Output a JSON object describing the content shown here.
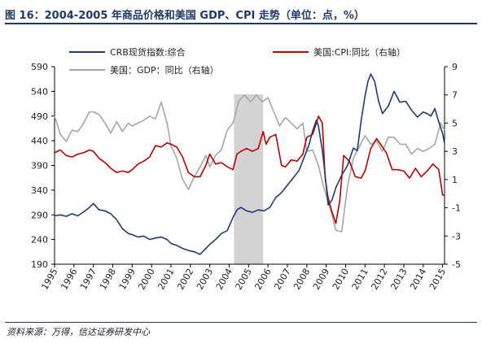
{
  "header": {
    "title": "图 16：2004-2005 年商品价格和美国 GDP、CPI 走势（单位：点，%）"
  },
  "footer": {
    "source": "资料来源：万得，信达证券研发中心"
  },
  "chart_data": {
    "type": "line",
    "x_ticks": [
      "1995",
      "1996",
      "1997",
      "1998",
      "1999",
      "2000",
      "2001",
      "2002",
      "2003",
      "2004",
      "2005",
      "2006",
      "2007",
      "2008",
      "2009",
      "2010",
      "2011",
      "2012",
      "2013",
      "2014",
      "2015"
    ],
    "y_left": {
      "min": 190,
      "max": 590,
      "ticks": [
        190,
        240,
        290,
        340,
        390,
        440,
        490,
        540,
        590
      ]
    },
    "y_right": {
      "min": -5,
      "max": 9,
      "ticks": [
        -5,
        -3,
        -1,
        1,
        3,
        5,
        7,
        9
      ]
    },
    "shaded_region": [
      2004.25,
      2005.75
    ],
    "colors": {
      "crb": "#1f3a78",
      "cpi": "#c00000",
      "gdp": "#a6a6a6",
      "shade": "#d3d3d3",
      "accent": "#1f3a68"
    },
    "series": [
      {
        "name": "CRB现货指数:综合",
        "axis": "left",
        "x": [
          1995.0,
          1995.3,
          1995.6,
          1995.9,
          1996.2,
          1996.5,
          1996.8,
          1997.0,
          1997.3,
          1997.6,
          1997.9,
          1998.2,
          1998.5,
          1998.8,
          1999.0,
          1999.3,
          1999.6,
          1999.9,
          2000.2,
          2000.5,
          2000.8,
          2001.0,
          2001.3,
          2001.6,
          2001.9,
          2002.2,
          2002.5,
          2002.8,
          2003.0,
          2003.3,
          2003.6,
          2003.9,
          2004.2,
          2004.4,
          2004.6,
          2004.9,
          2005.2,
          2005.5,
          2005.8,
          2006.1,
          2006.4,
          2006.7,
          2007.0,
          2007.3,
          2007.6,
          2007.9,
          2008.1,
          2008.3,
          2008.5,
          2008.6,
          2008.8,
          2008.95,
          2009.1,
          2009.3,
          2009.5,
          2009.8,
          2010.1,
          2010.4,
          2010.6,
          2010.8,
          2011.0,
          2011.15,
          2011.3,
          2011.5,
          2011.7,
          2011.9,
          2012.2,
          2012.5,
          2012.8,
          2013.1,
          2013.4,
          2013.7,
          2014.0,
          2014.2,
          2014.4,
          2014.6,
          2014.8,
          2015.0,
          2015.1
        ],
        "y": [
          288,
          290,
          287,
          292,
          288,
          296,
          305,
          313,
          300,
          298,
          292,
          280,
          262,
          252,
          250,
          245,
          247,
          240,
          243,
          245,
          240,
          232,
          228,
          222,
          218,
          215,
          210,
          222,
          230,
          240,
          252,
          258,
          285,
          300,
          305,
          298,
          295,
          300,
          298,
          305,
          325,
          335,
          350,
          365,
          380,
          410,
          430,
          460,
          482,
          470,
          420,
          370,
          310,
          320,
          345,
          370,
          390,
          425,
          420,
          480,
          530,
          560,
          575,
          560,
          520,
          495,
          510,
          540,
          518,
          520,
          502,
          488,
          498,
          495,
          490,
          505,
          478,
          455,
          435
        ]
      },
      {
        "name": "美国:CPI:同比（右轴）",
        "axis": "right",
        "x": [
          1995.0,
          1995.3,
          1995.6,
          1995.9,
          1996.2,
          1996.5,
          1996.8,
          1997.0,
          1997.3,
          1997.6,
          1997.9,
          1998.2,
          1998.5,
          1998.8,
          1999.0,
          1999.3,
          1999.6,
          1999.9,
          2000.2,
          2000.5,
          2000.8,
          2001.0,
          2001.3,
          2001.6,
          2001.9,
          2002.2,
          2002.5,
          2002.8,
          2003.0,
          2003.3,
          2003.6,
          2003.9,
          2004.2,
          2004.4,
          2004.6,
          2004.9,
          2005.2,
          2005.5,
          2005.75,
          2005.9,
          2006.1,
          2006.4,
          2006.7,
          2006.9,
          2007.2,
          2007.5,
          2007.8,
          2008.0,
          2008.3,
          2008.5,
          2008.6,
          2008.8,
          2008.95,
          2009.1,
          2009.3,
          2009.5,
          2009.7,
          2009.9,
          2010.2,
          2010.5,
          2010.8,
          2011.0,
          2011.3,
          2011.6,
          2011.8,
          2012.1,
          2012.4,
          2012.7,
          2013.0,
          2013.3,
          2013.6,
          2013.9,
          2014.2,
          2014.5,
          2014.8,
          2015.0,
          2015.1
        ],
        "y": [
          2.9,
          3.1,
          2.7,
          2.6,
          2.8,
          2.9,
          3.1,
          3.0,
          2.5,
          2.2,
          1.8,
          1.5,
          1.6,
          1.5,
          1.7,
          2.1,
          2.3,
          2.6,
          3.4,
          3.3,
          3.6,
          3.5,
          3.3,
          2.6,
          1.5,
          1.2,
          1.2,
          2.0,
          2.8,
          2.1,
          2.2,
          1.9,
          1.7,
          2.8,
          3.0,
          3.2,
          3.0,
          3.2,
          4.4,
          3.5,
          4.0,
          4.2,
          2.0,
          1.9,
          2.4,
          2.3,
          2.8,
          4.0,
          4.2,
          5.0,
          5.5,
          5.0,
          1.1,
          -0.3,
          -1.3,
          -2.1,
          -0.5,
          2.7,
          2.3,
          1.2,
          1.1,
          1.6,
          3.2,
          3.9,
          3.5,
          2.9,
          1.7,
          1.7,
          1.6,
          1.1,
          1.8,
          1.2,
          1.6,
          2.1,
          1.7,
          -0.1,
          -0.1
        ]
      },
      {
        "name": "美国：GDP：同比（右轴）",
        "axis": "right",
        "x": [
          1995.0,
          1995.3,
          1995.6,
          1995.9,
          1996.2,
          1996.5,
          1996.8,
          1997.0,
          1997.3,
          1997.6,
          1997.9,
          1998.2,
          1998.5,
          1998.8,
          1999.0,
          1999.3,
          1999.6,
          1999.9,
          2000.2,
          2000.5,
          2000.8,
          2001.0,
          2001.3,
          2001.6,
          2001.9,
          2002.2,
          2002.5,
          2002.8,
          2003.0,
          2003.3,
          2003.6,
          2003.9,
          2004.2,
          2004.5,
          2004.8,
          2005.1,
          2005.4,
          2005.7,
          2006.0,
          2006.3,
          2006.6,
          2006.9,
          2007.2,
          2007.5,
          2007.8,
          2008.0,
          2008.3,
          2008.6,
          2008.9,
          2009.2,
          2009.5,
          2009.8,
          2010.1,
          2010.4,
          2010.7,
          2011.0,
          2011.3,
          2011.6,
          2011.9,
          2012.2,
          2012.5,
          2012.8,
          2013.1,
          2013.4,
          2013.7,
          2014.0,
          2014.3,
          2014.6,
          2014.9,
          2015.1
        ],
        "y": [
          5.5,
          4.2,
          3.7,
          4.5,
          4.4,
          5.0,
          5.8,
          5.8,
          5.6,
          5.0,
          4.3,
          5.1,
          4.4,
          5.0,
          4.8,
          5.0,
          5.2,
          5.5,
          5.3,
          6.5,
          5.0,
          3.4,
          2.5,
          1.0,
          0.3,
          1.2,
          1.9,
          2.7,
          1.9,
          2.7,
          3.1,
          4.5,
          5.0,
          6.6,
          7.0,
          6.5,
          7.0,
          6.5,
          6.8,
          5.8,
          4.8,
          5.4,
          5.0,
          4.6,
          5.0,
          3.0,
          3.1,
          2.0,
          0.3,
          -1.0,
          -2.6,
          -2.7,
          0.5,
          2.5,
          3.3,
          4.1,
          3.5,
          3.7,
          3.0,
          4.0,
          4.0,
          3.5,
          3.5,
          2.8,
          3.2,
          3.0,
          3.2,
          3.5,
          5.0,
          4.5
        ]
      }
    ],
    "legend": [
      "CRB现货指数:综合",
      "美国:CPI:同比（右轴）",
      "美国：GDP：同比（右轴）"
    ]
  }
}
